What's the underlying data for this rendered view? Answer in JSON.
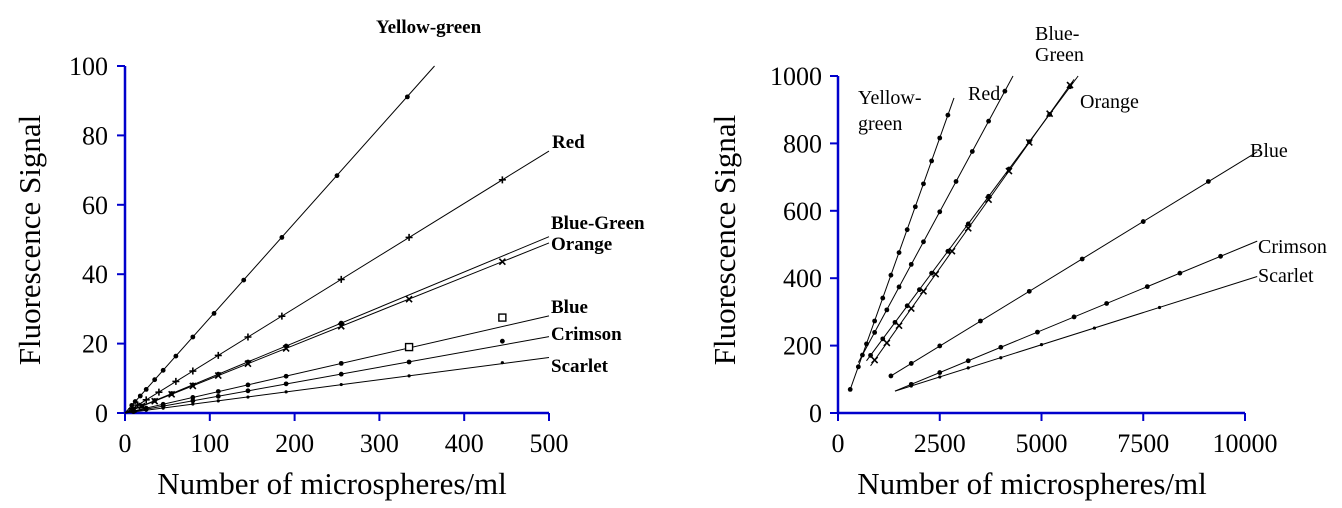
{
  "chart_data": [
    {
      "type": "scatter",
      "title": "",
      "xlabel": "Number of microspheres/ml",
      "ylabel": "Fluorescence Signal",
      "xlim": [
        0,
        500
      ],
      "ylim": [
        0,
        100
      ],
      "x_ticks": [
        "0",
        "100",
        "200",
        "300",
        "400",
        "500"
      ],
      "y_ticks": [
        "0",
        "20",
        "40",
        "60",
        "80",
        "100"
      ],
      "axis_color": "#0000cc",
      "grid": false,
      "series": [
        {
          "name": "Yellow-green",
          "fit_x": [
            0,
            365
          ],
          "fit_y": [
            0,
            100
          ],
          "x": [
            8,
            12,
            18,
            25,
            35,
            45,
            60,
            80,
            105,
            140,
            185,
            250,
            333
          ],
          "y": [
            2.2,
            3.3,
            4.9,
            6.8,
            9.6,
            12.3,
            16.4,
            21.9,
            28.7,
            38.3,
            50.6,
            68.4,
            91.1
          ]
        },
        {
          "name": "Red",
          "fit_x": [
            0,
            500
          ],
          "fit_y": [
            0,
            75.5
          ],
          "x": [
            8,
            15,
            25,
            40,
            60,
            80,
            110,
            145,
            185,
            255,
            335,
            445
          ],
          "y": [
            1.2,
            2.3,
            3.8,
            6.0,
            9.1,
            12.1,
            16.6,
            21.9,
            27.9,
            38.5,
            50.6,
            67.2
          ]
        },
        {
          "name": "Blue-Green",
          "fit_x": [
            0,
            500
          ],
          "fit_y": [
            0,
            50.8
          ],
          "x": [
            10,
            20,
            35,
            55,
            80,
            110,
            145,
            190,
            255
          ],
          "y": [
            1.0,
            2.0,
            3.6,
            5.6,
            8.1,
            11.2,
            14.7,
            19.3,
            25.9
          ]
        },
        {
          "name": "Orange",
          "fit_x": [
            0,
            500
          ],
          "fit_y": [
            0,
            49.0
          ],
          "x": [
            10,
            20,
            35,
            55,
            80,
            110,
            145,
            190,
            255,
            335,
            445
          ],
          "y": [
            1.0,
            2.0,
            3.4,
            5.4,
            7.8,
            10.8,
            14.2,
            18.6,
            25.0,
            32.8,
            43.6
          ]
        },
        {
          "name": "Blue",
          "fit_x": [
            0,
            500
          ],
          "fit_y": [
            0,
            28.0
          ],
          "x": [
            10,
            25,
            45,
            80,
            110,
            145,
            190,
            255,
            335,
            445
          ],
          "y": [
            0.6,
            1.4,
            2.5,
            4.5,
            6.2,
            8.1,
            10.6,
            14.3,
            19.0,
            27.5
          ]
        },
        {
          "name": "Crimson",
          "fit_x": [
            0,
            500
          ],
          "fit_y": [
            0,
            22.0
          ],
          "x": [
            10,
            25,
            45,
            80,
            110,
            145,
            190,
            255,
            335,
            445
          ],
          "y": [
            0.4,
            1.1,
            2.0,
            3.5,
            4.8,
            6.4,
            8.4,
            11.2,
            14.7,
            20.7
          ]
        },
        {
          "name": "Scarlet",
          "fit_x": [
            0,
            500
          ],
          "fit_y": [
            0,
            16.0
          ],
          "x": [
            10,
            25,
            45,
            80,
            110,
            145,
            190,
            255,
            335,
            445
          ],
          "y": [
            0.3,
            0.8,
            1.4,
            2.6,
            3.5,
            4.6,
            6.1,
            8.2,
            10.7,
            14.5
          ]
        }
      ]
    },
    {
      "type": "scatter",
      "title": "",
      "xlabel": "Number of microspheres/ml",
      "ylabel": "Fluorescence Signal",
      "xlim": [
        0,
        10000
      ],
      "ylim": [
        0,
        1000
      ],
      "x_ticks": [
        "0",
        "2500",
        "5000",
        "7500",
        "10000"
      ],
      "y_ticks": [
        "0",
        "200",
        "400",
        "600",
        "800",
        "1000"
      ],
      "axis_color": "#0000cc",
      "grid": false,
      "series": [
        {
          "name": "Yellow-\ngreen",
          "fit_x": [
            300,
            2850
          ],
          "fit_y": [
            70,
            935
          ],
          "x": [
            300,
            500,
            700,
            900,
            1100,
            1300,
            1500,
            1700,
            1900,
            2100,
            2300,
            2500,
            2700
          ],
          "y": [
            70,
            137,
            205,
            273,
            341,
            409,
            476,
            544,
            612,
            680,
            748,
            816,
            884
          ]
        },
        {
          "name": "Red",
          "fit_x": [
            500,
            4300
          ],
          "fit_y": [
            150,
            1000
          ],
          "x": [
            600,
            900,
            1200,
            1500,
            1800,
            2100,
            2500,
            2900,
            3300,
            3700,
            4100
          ],
          "y": [
            172,
            239,
            306,
            374,
            441,
            508,
            597,
            687,
            776,
            866,
            955
          ]
        },
        {
          "name": "Blue-\nGreen",
          "fit_x": [
            700,
            5900
          ],
          "fit_y": [
            155,
            1000
          ],
          "x": [
            800,
            1100,
            1400,
            1700,
            2000,
            2300,
            2700,
            3200,
            3700,
            4200,
            4700,
            5200,
            5700
          ],
          "y": [
            171,
            220,
            269,
            318,
            366,
            415,
            480,
            561,
            643,
            724,
            805,
            886,
            968
          ]
        },
        {
          "name": "Orange",
          "fit_x": [
            800,
            5800
          ],
          "fit_y": [
            140,
            990
          ],
          "x": [
            900,
            1200,
            1500,
            1800,
            2100,
            2400,
            2800,
            3200,
            3700,
            4200,
            4700,
            5200,
            5700
          ],
          "y": [
            157,
            208,
            259,
            310,
            361,
            412,
            480,
            548,
            633,
            718,
            803,
            888,
            973
          ]
        },
        {
          "name": "Blue",
          "fit_x": [
            1300,
            10300
          ],
          "fit_y": [
            110,
            775
          ],
          "x": [
            1300,
            1800,
            2500,
            3500,
            4700,
            6000,
            7500,
            9100
          ],
          "y": [
            110,
            147,
            199,
            273,
            361,
            457,
            568,
            687
          ]
        },
        {
          "name": "Crimson",
          "fit_x": [
            1400,
            10300
          ],
          "fit_y": [
            65,
            510
          ],
          "x": [
            1800,
            2500,
            3200,
            4000,
            4900,
            5800,
            6600,
            7600,
            8400,
            9400
          ],
          "y": [
            85,
            120,
            155,
            195,
            240,
            285,
            325,
            375,
            415,
            465
          ]
        },
        {
          "name": "Scarlet",
          "fit_x": [
            1400,
            10300
          ],
          "fit_y": [
            65,
            405
          ],
          "x": [
            1800,
            2500,
            3200,
            4000,
            5000,
            6300,
            7900
          ],
          "y": [
            80,
            107,
            134,
            164,
            203,
            252,
            313
          ]
        }
      ]
    }
  ]
}
